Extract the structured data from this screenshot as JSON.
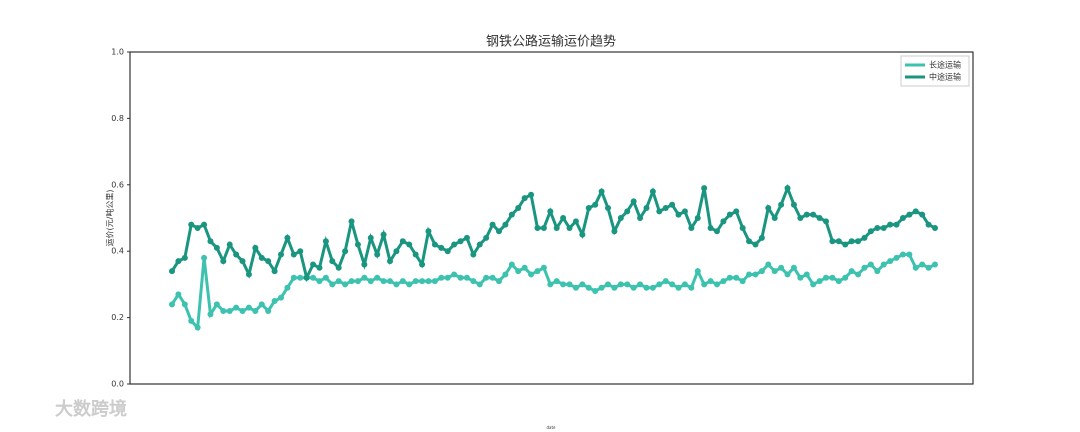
{
  "chart_data": {
    "type": "line",
    "title": "钢铁公路运输运价趋势",
    "ylabel": "运价(元/吨公里)",
    "xlabel": "date",
    "categories": [
      null,
      null,
      null,
      null,
      null,
      null,
      null,
      null,
      null,
      null,
      null,
      null,
      null,
      null,
      null,
      null,
      null,
      null,
      null,
      null,
      null,
      null,
      null,
      null,
      null,
      null,
      null,
      null,
      null,
      null,
      null,
      null,
      null,
      null,
      null,
      null,
      null,
      null,
      null,
      null,
      null,
      null,
      null,
      null,
      null,
      null,
      null,
      null,
      null,
      null,
      null,
      null,
      null,
      null,
      null,
      null,
      null,
      null,
      null,
      null,
      null,
      null,
      null,
      null,
      null,
      null,
      null,
      null,
      null,
      null,
      null,
      null,
      null,
      null,
      null,
      null,
      null,
      null,
      null,
      null,
      null,
      null,
      null,
      null,
      null,
      null,
      null,
      null,
      null,
      null,
      null,
      null,
      null,
      null,
      null,
      null,
      null,
      null,
      null,
      null,
      null,
      null,
      null,
      null,
      null,
      null,
      null,
      null,
      null,
      null,
      null,
      null,
      null,
      null,
      null,
      null,
      null,
      null,
      null,
      null
    ],
    "series": [
      {
        "name": "长途运输",
        "color": "#3cc2ae",
        "values": [
          0.24,
          0.27,
          0.24,
          0.19,
          0.17,
          0.38,
          0.21,
          0.24,
          0.22,
          0.22,
          0.23,
          0.22,
          0.23,
          0.22,
          0.24,
          0.22,
          0.25,
          0.26,
          0.29,
          0.32,
          0.32,
          0.32,
          0.32,
          0.31,
          0.32,
          0.3,
          0.31,
          0.3,
          0.31,
          0.31,
          0.32,
          0.31,
          0.32,
          0.31,
          0.31,
          0.3,
          0.31,
          0.3,
          0.31,
          0.31,
          0.31,
          0.31,
          0.32,
          0.32,
          0.33,
          0.32,
          0.32,
          0.31,
          0.3,
          0.32,
          0.32,
          0.31,
          0.33,
          0.36,
          0.34,
          0.35,
          0.33,
          0.34,
          0.35,
          0.3,
          0.31,
          0.3,
          0.3,
          0.29,
          0.3,
          0.29,
          0.28,
          0.29,
          0.3,
          0.29,
          0.3,
          0.3,
          0.29,
          0.3,
          0.29,
          0.29,
          0.3,
          0.31,
          0.3,
          0.29,
          0.3,
          0.29,
          0.34,
          0.3,
          0.31,
          0.3,
          0.31,
          0.32,
          0.32,
          0.31,
          0.33,
          0.33,
          0.34,
          0.36,
          0.34,
          0.35,
          0.33,
          0.35,
          0.32,
          0.33,
          0.3,
          0.31,
          0.32,
          0.32,
          0.31,
          0.32,
          0.34,
          0.33,
          0.35,
          0.36,
          0.34,
          0.36,
          0.37,
          0.38,
          0.39,
          0.39,
          0.35,
          0.36,
          0.35,
          0.36
        ]
      },
      {
        "name": "中途运输",
        "color": "#1a9580",
        "values": [
          0.34,
          0.37,
          0.38,
          0.48,
          0.47,
          0.48,
          0.43,
          0.41,
          0.37,
          0.42,
          0.39,
          0.37,
          0.33,
          0.41,
          0.38,
          0.37,
          0.34,
          0.39,
          0.44,
          0.39,
          0.4,
          0.32,
          0.36,
          0.35,
          0.43,
          0.37,
          0.35,
          0.4,
          0.49,
          0.42,
          0.36,
          0.44,
          0.39,
          0.45,
          0.37,
          0.4,
          0.43,
          0.42,
          0.39,
          0.36,
          0.46,
          0.42,
          0.41,
          0.4,
          0.42,
          0.43,
          0.44,
          0.39,
          0.42,
          0.44,
          0.48,
          0.46,
          0.48,
          0.51,
          0.53,
          0.56,
          0.57,
          0.47,
          0.47,
          0.52,
          0.47,
          0.5,
          0.47,
          0.49,
          0.45,
          0.53,
          0.54,
          0.58,
          0.53,
          0.46,
          0.5,
          0.52,
          0.55,
          0.5,
          0.53,
          0.58,
          0.52,
          0.53,
          0.54,
          0.51,
          0.52,
          0.47,
          0.5,
          0.59,
          0.47,
          0.46,
          0.49,
          0.51,
          0.52,
          0.47,
          0.43,
          0.42,
          0.44,
          0.53,
          0.5,
          0.54,
          0.59,
          0.54,
          0.5,
          0.51,
          0.51,
          0.5,
          0.49,
          0.43,
          0.43,
          0.42,
          0.43,
          0.43,
          0.44,
          0.46,
          0.47,
          0.47,
          0.48,
          0.48,
          0.5,
          0.51,
          0.52,
          0.51,
          0.48,
          0.47
        ]
      }
    ],
    "ylim": [
      0,
      1
    ],
    "yticks": [
      {
        "value": 0,
        "label": "0.0"
      },
      0.2,
      0.4,
      0.6,
      0.8,
      {
        "value": 1,
        "label": "1.0"
      }
    ],
    "grid": false,
    "legend": "upper right"
  },
  "watermark": {
    "text": "大数跨境"
  }
}
